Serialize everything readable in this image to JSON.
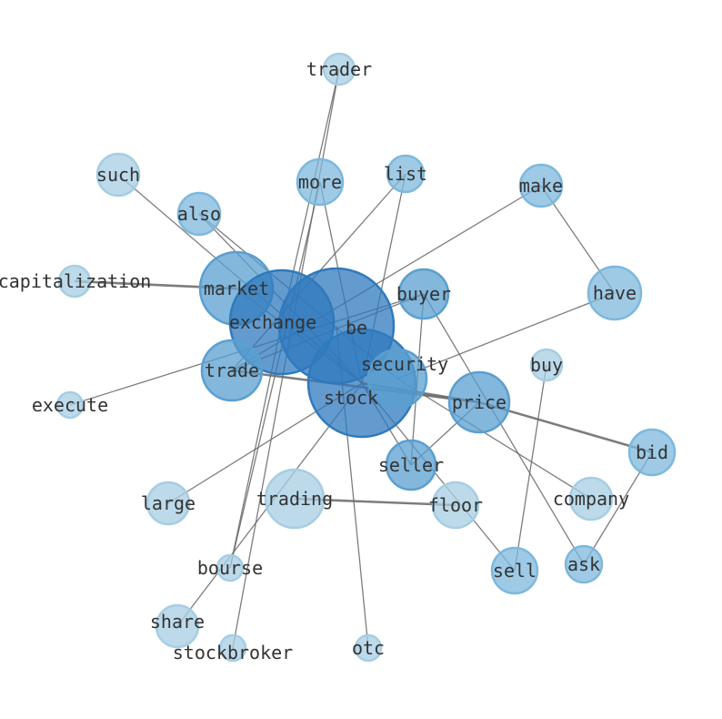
{
  "colors": {
    "light": "#a6cde3",
    "mid": "#7db8dd",
    "strong": "#5a9fd0",
    "deep": "#2f7abd",
    "edge": "#666666"
  },
  "nodes": [
    {
      "id": "trader",
      "label": "trader",
      "shade": "light"
    },
    {
      "id": "such",
      "label": "such",
      "shade": "light"
    },
    {
      "id": "more",
      "label": "more",
      "shade": "mid"
    },
    {
      "id": "list",
      "label": "list",
      "shade": "mid"
    },
    {
      "id": "make",
      "label": "make",
      "shade": "mid"
    },
    {
      "id": "also",
      "label": "also",
      "shade": "mid"
    },
    {
      "id": "capitalization",
      "label": "capitalization",
      "shade": "light"
    },
    {
      "id": "market",
      "label": "market",
      "shade": "strong"
    },
    {
      "id": "have",
      "label": "have",
      "shade": "mid"
    },
    {
      "id": "buyer",
      "label": "buyer",
      "shade": "strong"
    },
    {
      "id": "exchange",
      "label": "exchange",
      "shade": "deep"
    },
    {
      "id": "be",
      "label": "be",
      "shade": "deep"
    },
    {
      "id": "trade",
      "label": "trade",
      "shade": "strong"
    },
    {
      "id": "buy",
      "label": "buy",
      "shade": "light"
    },
    {
      "id": "stock",
      "label": "stock",
      "shade": "deep"
    },
    {
      "id": "security",
      "label": "security",
      "shade": "strong"
    },
    {
      "id": "price",
      "label": "price",
      "shade": "strong"
    },
    {
      "id": "execute",
      "label": "execute",
      "shade": "light"
    },
    {
      "id": "bid",
      "label": "bid",
      "shade": "mid"
    },
    {
      "id": "seller",
      "label": "seller",
      "shade": "strong"
    },
    {
      "id": "company",
      "label": "company",
      "shade": "light"
    },
    {
      "id": "large",
      "label": "large",
      "shade": "light"
    },
    {
      "id": "trading",
      "label": "trading",
      "shade": "light"
    },
    {
      "id": "floor",
      "label": "floor",
      "shade": "light"
    },
    {
      "id": "bourse",
      "label": "bourse",
      "shade": "light"
    },
    {
      "id": "sell",
      "label": "sell",
      "shade": "mid"
    },
    {
      "id": "ask",
      "label": "ask",
      "shade": "mid"
    },
    {
      "id": "share",
      "label": "share",
      "shade": "light"
    },
    {
      "id": "stockbroker",
      "label": "stockbroker",
      "shade": "light"
    },
    {
      "id": "otc",
      "label": "otc",
      "shade": "light"
    }
  ],
  "edges": [
    [
      "trader",
      "exchange",
      1
    ],
    [
      "trader",
      "stockbroker",
      1
    ],
    [
      "such",
      "stock",
      1
    ],
    [
      "more",
      "bourse",
      1
    ],
    [
      "more",
      "stock",
      1
    ],
    [
      "list",
      "trade",
      1
    ],
    [
      "list",
      "stock",
      1
    ],
    [
      "make",
      "trade",
      1
    ],
    [
      "make",
      "have",
      1
    ],
    [
      "also",
      "stock",
      1
    ],
    [
      "also",
      "security",
      1
    ],
    [
      "capitalization",
      "market",
      2
    ],
    [
      "market",
      "stock",
      1
    ],
    [
      "have",
      "security",
      1
    ],
    [
      "execute",
      "buyer",
      1
    ],
    [
      "buyer",
      "seller",
      1
    ],
    [
      "buyer",
      "ask",
      1
    ],
    [
      "buyer",
      "trade",
      1
    ],
    [
      "trade",
      "price",
      2
    ],
    [
      "stock",
      "price",
      2
    ],
    [
      "price",
      "bid",
      2
    ],
    [
      "price",
      "seller",
      1
    ],
    [
      "buy",
      "sell",
      1
    ],
    [
      "bid",
      "ask",
      1
    ],
    [
      "security",
      "company",
      1
    ],
    [
      "stock",
      "large",
      1
    ],
    [
      "trading",
      "floor",
      2
    ],
    [
      "sell",
      "stock",
      1
    ],
    [
      "share",
      "stock",
      1
    ],
    [
      "otc",
      "be",
      1
    ],
    [
      "seller",
      "stock",
      1
    ],
    [
      "exchange",
      "bourse",
      1
    ]
  ]
}
